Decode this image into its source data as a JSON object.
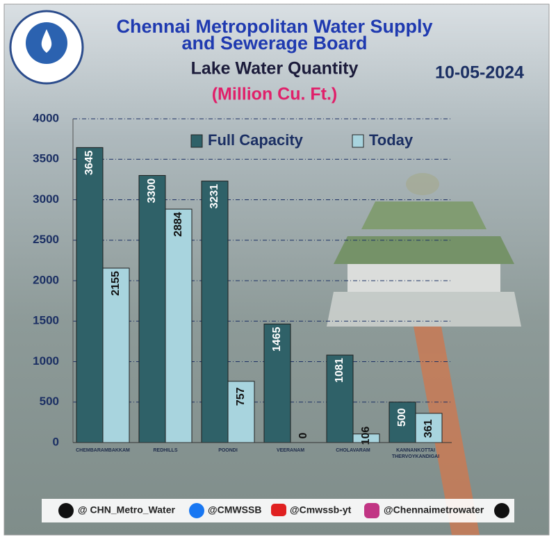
{
  "chart_data": {
    "type": "bar",
    "title": [
      "Chennai Metropolitan Water Supply",
      "and Sewerage Board"
    ],
    "subtitle": "Lake Water Quantity",
    "unit_label": "(Million Cu. Ft.)",
    "date": "10-05-2024",
    "categories": [
      "CHEMBARAMBAKKAM",
      "REDHILLS",
      "POONDI",
      "VEERANAM",
      "CHOLAVARAM",
      "KANNANKOTTAI THERVOYKANDIGAI"
    ],
    "series": [
      {
        "name": "Full Capacity",
        "color": "#2f6168",
        "values": [
          3645,
          3300,
          3231,
          1465,
          1081,
          500
        ]
      },
      {
        "name": "Today",
        "color": "#a8d4de",
        "values": [
          2155,
          2884,
          757,
          0,
          106,
          361
        ]
      }
    ],
    "ylim": [
      0,
      4000
    ],
    "yticks": [
      0,
      500,
      1000,
      1500,
      2000,
      2500,
      3000,
      3500,
      4000
    ],
    "grid": true,
    "legend": "top",
    "footer": [
      "@ CHN_Metro_Water",
      "@CMWSSB",
      "@Cmwssb-yt",
      "@Chennaimetrowater"
    ]
  }
}
